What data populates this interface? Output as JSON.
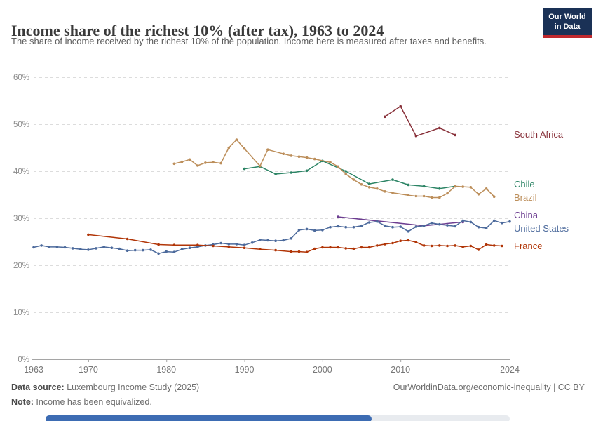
{
  "header": {
    "title": "Income share of the richest 10% (after tax), 1963 to 2024",
    "subtitle": "The share of income received by the richest 10% of the population. Income here is measured after taxes and benefits.",
    "logo": {
      "line1": "Our World",
      "line2": "in Data",
      "bg_color": "#1a3156",
      "accent_color": "#c0282d"
    }
  },
  "chart_data": {
    "type": "line",
    "title": "Income share of the richest 10% (after tax), 1963 to 2024",
    "unit": "%",
    "xlim": [
      1963,
      2024
    ],
    "ylim": [
      0,
      60
    ],
    "x_ticks": [
      1963,
      1970,
      1980,
      1990,
      2000,
      2010,
      2024
    ],
    "y_ticks": [
      0,
      10,
      20,
      30,
      40,
      50,
      60
    ],
    "grid": "horizontal-dashed",
    "legend_position": "right-of-line-ends",
    "series": [
      {
        "name": "South Africa",
        "color": "#883039",
        "points": [
          [
            2008,
            51.6
          ],
          [
            2010,
            53.8
          ],
          [
            2012,
            47.5
          ],
          [
            2015,
            49.2
          ],
          [
            2017,
            47.7
          ]
        ]
      },
      {
        "name": "Chile",
        "color": "#2c8465",
        "points": [
          [
            1990,
            40.5
          ],
          [
            1992,
            41.0
          ],
          [
            1994,
            39.4
          ],
          [
            1996,
            39.7
          ],
          [
            1998,
            40.1
          ],
          [
            2000,
            42.2
          ],
          [
            2003,
            40.0
          ],
          [
            2006,
            37.3
          ],
          [
            2009,
            38.2
          ],
          [
            2011,
            37.1
          ],
          [
            2013,
            36.8
          ],
          [
            2015,
            36.3
          ],
          [
            2017,
            36.8
          ]
        ]
      },
      {
        "name": "Brazil",
        "color": "#bc8e5a",
        "points": [
          [
            1981,
            41.6
          ],
          [
            1982,
            42.0
          ],
          [
            1983,
            42.5
          ],
          [
            1984,
            41.2
          ],
          [
            1985,
            41.8
          ],
          [
            1986,
            41.9
          ],
          [
            1987,
            41.7
          ],
          [
            1988,
            45.0
          ],
          [
            1989,
            46.7
          ],
          [
            1990,
            44.8
          ],
          [
            1992,
            41.1
          ],
          [
            1993,
            44.6
          ],
          [
            1995,
            43.7
          ],
          [
            1996,
            43.3
          ],
          [
            1997,
            43.1
          ],
          [
            1998,
            42.9
          ],
          [
            1999,
            42.6
          ],
          [
            2001,
            41.9
          ],
          [
            2002,
            41.0
          ],
          [
            2003,
            39.4
          ],
          [
            2004,
            38.2
          ],
          [
            2005,
            37.2
          ],
          [
            2006,
            36.6
          ],
          [
            2007,
            36.3
          ],
          [
            2008,
            35.7
          ],
          [
            2009,
            35.4
          ],
          [
            2011,
            34.9
          ],
          [
            2012,
            34.7
          ],
          [
            2013,
            34.7
          ],
          [
            2014,
            34.4
          ],
          [
            2015,
            34.4
          ],
          [
            2016,
            35.3
          ],
          [
            2017,
            36.8
          ],
          [
            2018,
            36.7
          ],
          [
            2019,
            36.6
          ],
          [
            2020,
            35.1
          ],
          [
            2021,
            36.3
          ],
          [
            2022,
            34.6
          ]
        ]
      },
      {
        "name": "China",
        "color": "#6d3e91",
        "points": [
          [
            2002,
            30.3
          ],
          [
            2013,
            28.4
          ],
          [
            2018,
            29.2
          ]
        ]
      },
      {
        "name": "United States",
        "color": "#4c6a9c",
        "points": [
          [
            1963,
            23.8
          ],
          [
            1964,
            24.2
          ],
          [
            1965,
            23.9
          ],
          [
            1966,
            23.9
          ],
          [
            1967,
            23.8
          ],
          [
            1968,
            23.6
          ],
          [
            1969,
            23.4
          ],
          [
            1970,
            23.3
          ],
          [
            1971,
            23.6
          ],
          [
            1972,
            23.9
          ],
          [
            1973,
            23.7
          ],
          [
            1974,
            23.5
          ],
          [
            1975,
            23.1
          ],
          [
            1976,
            23.2
          ],
          [
            1977,
            23.2
          ],
          [
            1978,
            23.3
          ],
          [
            1979,
            22.5
          ],
          [
            1980,
            22.9
          ],
          [
            1981,
            22.8
          ],
          [
            1982,
            23.4
          ],
          [
            1983,
            23.7
          ],
          [
            1984,
            23.9
          ],
          [
            1985,
            24.2
          ],
          [
            1986,
            24.4
          ],
          [
            1987,
            24.7
          ],
          [
            1988,
            24.5
          ],
          [
            1989,
            24.5
          ],
          [
            1990,
            24.3
          ],
          [
            1991,
            24.8
          ],
          [
            1992,
            25.4
          ],
          [
            1993,
            25.3
          ],
          [
            1994,
            25.2
          ],
          [
            1995,
            25.3
          ],
          [
            1996,
            25.7
          ],
          [
            1997,
            27.5
          ],
          [
            1998,
            27.7
          ],
          [
            1999,
            27.4
          ],
          [
            2000,
            27.5
          ],
          [
            2001,
            28.1
          ],
          [
            2002,
            28.3
          ],
          [
            2003,
            28.1
          ],
          [
            2004,
            28.1
          ],
          [
            2005,
            28.4
          ],
          [
            2006,
            29.1
          ],
          [
            2007,
            29.3
          ],
          [
            2008,
            28.4
          ],
          [
            2009,
            28.1
          ],
          [
            2010,
            28.2
          ],
          [
            2011,
            27.2
          ],
          [
            2012,
            28.2
          ],
          [
            2013,
            28.4
          ],
          [
            2014,
            29.0
          ],
          [
            2015,
            28.7
          ],
          [
            2016,
            28.5
          ],
          [
            2017,
            28.3
          ],
          [
            2018,
            29.5
          ],
          [
            2019,
            29.2
          ],
          [
            2020,
            28.1
          ],
          [
            2021,
            27.9
          ],
          [
            2022,
            29.5
          ],
          [
            2023,
            29.0
          ],
          [
            2024,
            29.3
          ]
        ]
      },
      {
        "name": "France",
        "color": "#b13507",
        "points": [
          [
            1970,
            26.5
          ],
          [
            1975,
            25.6
          ],
          [
            1979,
            24.4
          ],
          [
            1981,
            24.3
          ],
          [
            1984,
            24.3
          ],
          [
            1986,
            24.1
          ],
          [
            1988,
            23.9
          ],
          [
            1990,
            23.7
          ],
          [
            1992,
            23.4
          ],
          [
            1994,
            23.2
          ],
          [
            1996,
            22.9
          ],
          [
            1997,
            22.9
          ],
          [
            1998,
            22.8
          ],
          [
            1999,
            23.5
          ],
          [
            2000,
            23.8
          ],
          [
            2001,
            23.8
          ],
          [
            2002,
            23.8
          ],
          [
            2003,
            23.6
          ],
          [
            2004,
            23.5
          ],
          [
            2005,
            23.8
          ],
          [
            2006,
            23.8
          ],
          [
            2007,
            24.2
          ],
          [
            2008,
            24.5
          ],
          [
            2009,
            24.7
          ],
          [
            2010,
            25.2
          ],
          [
            2011,
            25.3
          ],
          [
            2012,
            24.9
          ],
          [
            2013,
            24.2
          ],
          [
            2014,
            24.1
          ],
          [
            2015,
            24.2
          ],
          [
            2016,
            24.1
          ],
          [
            2017,
            24.2
          ],
          [
            2018,
            23.9
          ],
          [
            2019,
            24.1
          ],
          [
            2020,
            23.3
          ],
          [
            2021,
            24.4
          ],
          [
            2022,
            24.2
          ],
          [
            2023,
            24.1
          ]
        ]
      }
    ]
  },
  "footer": {
    "datasource_label": "Data source:",
    "datasource_value": " Luxembourg Income Study (2025)",
    "note_label": "Note:",
    "note_value": " Income has been equivalized.",
    "credit": "OurWorldinData.org/economic-inequality | CC BY"
  },
  "timeline": {
    "fill_color": "#3d6cb3",
    "track_color": "#e8ebef"
  }
}
